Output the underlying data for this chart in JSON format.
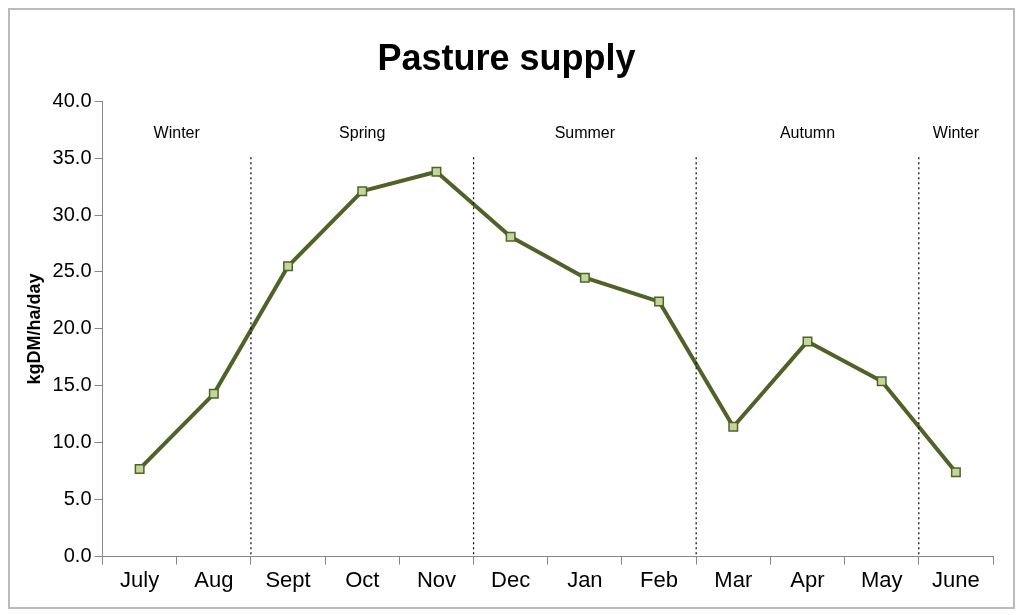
{
  "chart_data": {
    "type": "line",
    "title": "Pasture supply",
    "ylabel": "kgDM/ha/day",
    "categories": [
      "July",
      "Aug",
      "Sept",
      "Oct",
      "Nov",
      "Dec",
      "Jan",
      "Feb",
      "Mar",
      "Apr",
      "May",
      "June"
    ],
    "series": [
      {
        "color": "#4f6228",
        "values": [
          7.7,
          14.3,
          25.5,
          32.1,
          33.8,
          28.1,
          24.5,
          22.4,
          11.4,
          18.9,
          15.4,
          7.4
        ]
      }
    ],
    "ylim": [
      0,
      40
    ],
    "yticks": [
      {
        "value": 0,
        "label": "0.0"
      },
      {
        "value": 5,
        "label": "5.0"
      },
      {
        "value": 10,
        "label": "10.0"
      },
      {
        "value": 15,
        "label": "15.0"
      },
      {
        "value": 20,
        "label": "20.0"
      },
      {
        "value": 25,
        "label": "25.0"
      },
      {
        "value": 30,
        "label": "30.0"
      },
      {
        "value": 35,
        "label": "35.0"
      },
      {
        "value": 40,
        "label": "40.0"
      }
    ],
    "annotations": [
      "Winter",
      "Spring",
      "Summer",
      "Autumn",
      "Winter"
    ],
    "grid": false,
    "legend": false,
    "marker": "square",
    "line_style": "solid"
  }
}
